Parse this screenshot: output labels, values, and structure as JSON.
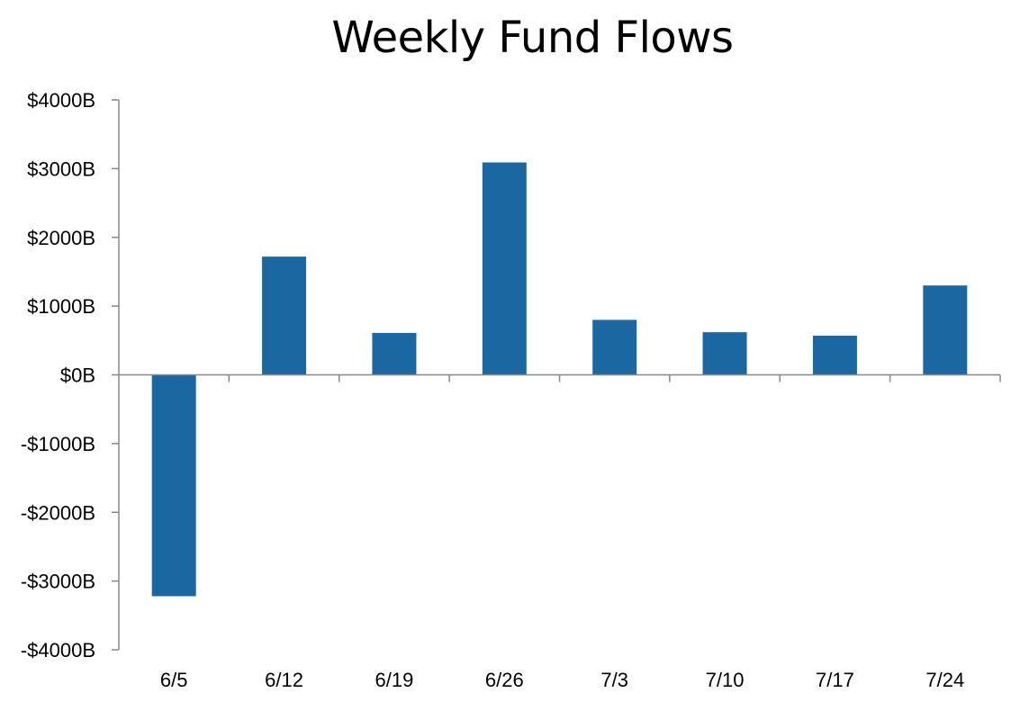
{
  "chart_data": {
    "type": "bar",
    "title": "Weekly Fund Flows",
    "xlabel": "",
    "ylabel": "",
    "categories": [
      "6/5",
      "6/12",
      "6/19",
      "6/26",
      "7/3",
      "7/10",
      "7/17",
      "7/24"
    ],
    "series": [
      {
        "values": [
          -3220,
          1720,
          610,
          3090,
          800,
          620,
          570,
          1300
        ]
      }
    ],
    "ylim": [
      -4000,
      4000
    ],
    "yticks": [
      4000,
      3000,
      2000,
      1000,
      0,
      -1000,
      -2000,
      -3000,
      -4000
    ],
    "ytick_labels": [
      "$4000B",
      "$3000B",
      "$2000B",
      "$1000B",
      "$0B",
      "-$1000B",
      "-$2000B",
      "-$3000B",
      "-$4000B"
    ],
    "grid": false,
    "legend": "none",
    "bar_color": "#1a67a1",
    "axis_color": "#888888"
  }
}
